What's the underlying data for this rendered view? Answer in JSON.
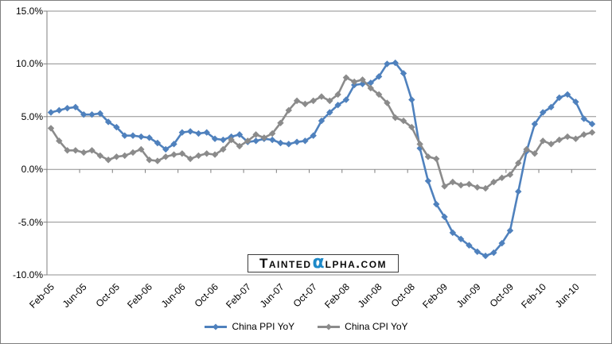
{
  "watermark": {
    "left": "Tainted",
    "alpha": "α",
    "right": "lpha.com",
    "alpha_color": "#1d89c8"
  },
  "style": {
    "grid_color": "#8f8f8f",
    "axis_color": "#7f7f7f",
    "background": "#ffffff",
    "border_color": "#7f7f7f"
  },
  "legend": {
    "items": [
      {
        "label": "China PPI YoY"
      },
      {
        "label": "China CPI YoY"
      }
    ]
  },
  "chart_data": {
    "type": "line",
    "title": "",
    "xlabel": "",
    "ylabel": "",
    "ylim": [
      -10,
      15
    ],
    "grid": true,
    "legend_position": "bottom",
    "marker": "diamond",
    "y_ticks": [
      "15.0%",
      "10.0%",
      "5.0%",
      "0.0%",
      "-5.0%",
      "-10.0%"
    ],
    "y_tick_values": [
      15,
      10,
      5,
      0,
      -5,
      -10
    ],
    "x_tick_every": 4,
    "x_tick_labels": [
      "Feb-05",
      "Jun-05",
      "Oct-05",
      "Feb-06",
      "Jun-06",
      "Oct-06",
      "Feb-07",
      "Jun-07",
      "Oct-07",
      "Feb-08",
      "Jun-08",
      "Oct-08",
      "Feb-09",
      "Jun-09",
      "Oct-09",
      "Feb-10",
      "Jun-10"
    ],
    "categories": [
      "Feb-05",
      "Mar-05",
      "Apr-05",
      "May-05",
      "Jun-05",
      "Jul-05",
      "Aug-05",
      "Sep-05",
      "Oct-05",
      "Nov-05",
      "Dec-05",
      "Jan-06",
      "Feb-06",
      "Mar-06",
      "Apr-06",
      "May-06",
      "Jun-06",
      "Jul-06",
      "Aug-06",
      "Sep-06",
      "Oct-06",
      "Nov-06",
      "Dec-06",
      "Jan-07",
      "Feb-07",
      "Mar-07",
      "Apr-07",
      "May-07",
      "Jun-07",
      "Jul-07",
      "Aug-07",
      "Sep-07",
      "Oct-07",
      "Nov-07",
      "Dec-07",
      "Jan-08",
      "Feb-08",
      "Mar-08",
      "Apr-08",
      "May-08",
      "Jun-08",
      "Jul-08",
      "Aug-08",
      "Sep-08",
      "Oct-08",
      "Nov-08",
      "Dec-08",
      "Jan-09",
      "Feb-09",
      "Mar-09",
      "Apr-09",
      "May-09",
      "Jun-09",
      "Jul-09",
      "Aug-09",
      "Sep-09",
      "Oct-09",
      "Nov-09",
      "Dec-09",
      "Jan-10",
      "Feb-10",
      "Mar-10",
      "Apr-10",
      "May-10",
      "Jun-10",
      "Jul-10",
      "Aug-10"
    ],
    "series": [
      {
        "name": "China PPI YoY",
        "color": "#4f81bd",
        "values": [
          5.4,
          5.6,
          5.8,
          5.9,
          5.2,
          5.2,
          5.3,
          4.5,
          4.0,
          3.2,
          3.2,
          3.1,
          3.0,
          2.5,
          1.9,
          2.4,
          3.5,
          3.6,
          3.4,
          3.5,
          2.9,
          2.8,
          3.1,
          3.3,
          2.6,
          2.7,
          2.9,
          2.8,
          2.5,
          2.4,
          2.6,
          2.7,
          3.2,
          4.6,
          5.4,
          6.1,
          6.6,
          8.0,
          8.1,
          8.2,
          8.8,
          10.0,
          10.1,
          9.1,
          6.6,
          2.0,
          -1.1,
          -3.3,
          -4.5,
          -6.0,
          -6.6,
          -7.2,
          -7.8,
          -8.2,
          -7.9,
          -7.0,
          -5.8,
          -2.1,
          1.7,
          4.3,
          5.4,
          5.9,
          6.8,
          7.1,
          6.4,
          4.8,
          4.3
        ]
      },
      {
        "name": "China CPI YoY",
        "color": "#8b8b8b",
        "values": [
          3.9,
          2.7,
          1.8,
          1.8,
          1.6,
          1.8,
          1.3,
          0.9,
          1.2,
          1.3,
          1.6,
          1.9,
          0.9,
          0.8,
          1.2,
          1.4,
          1.5,
          1.0,
          1.3,
          1.5,
          1.4,
          1.9,
          2.8,
          2.2,
          2.7,
          3.3,
          3.0,
          3.4,
          4.4,
          5.6,
          6.5,
          6.2,
          6.5,
          6.9,
          6.5,
          7.1,
          8.7,
          8.3,
          8.5,
          7.7,
          7.1,
          6.3,
          4.9,
          4.6,
          4.0,
          2.4,
          1.2,
          1.0,
          -1.6,
          -1.2,
          -1.5,
          -1.4,
          -1.7,
          -1.8,
          -1.2,
          -0.8,
          -0.5,
          0.6,
          1.9,
          1.5,
          2.7,
          2.4,
          2.8,
          3.1,
          2.9,
          3.3,
          3.5
        ]
      }
    ]
  }
}
